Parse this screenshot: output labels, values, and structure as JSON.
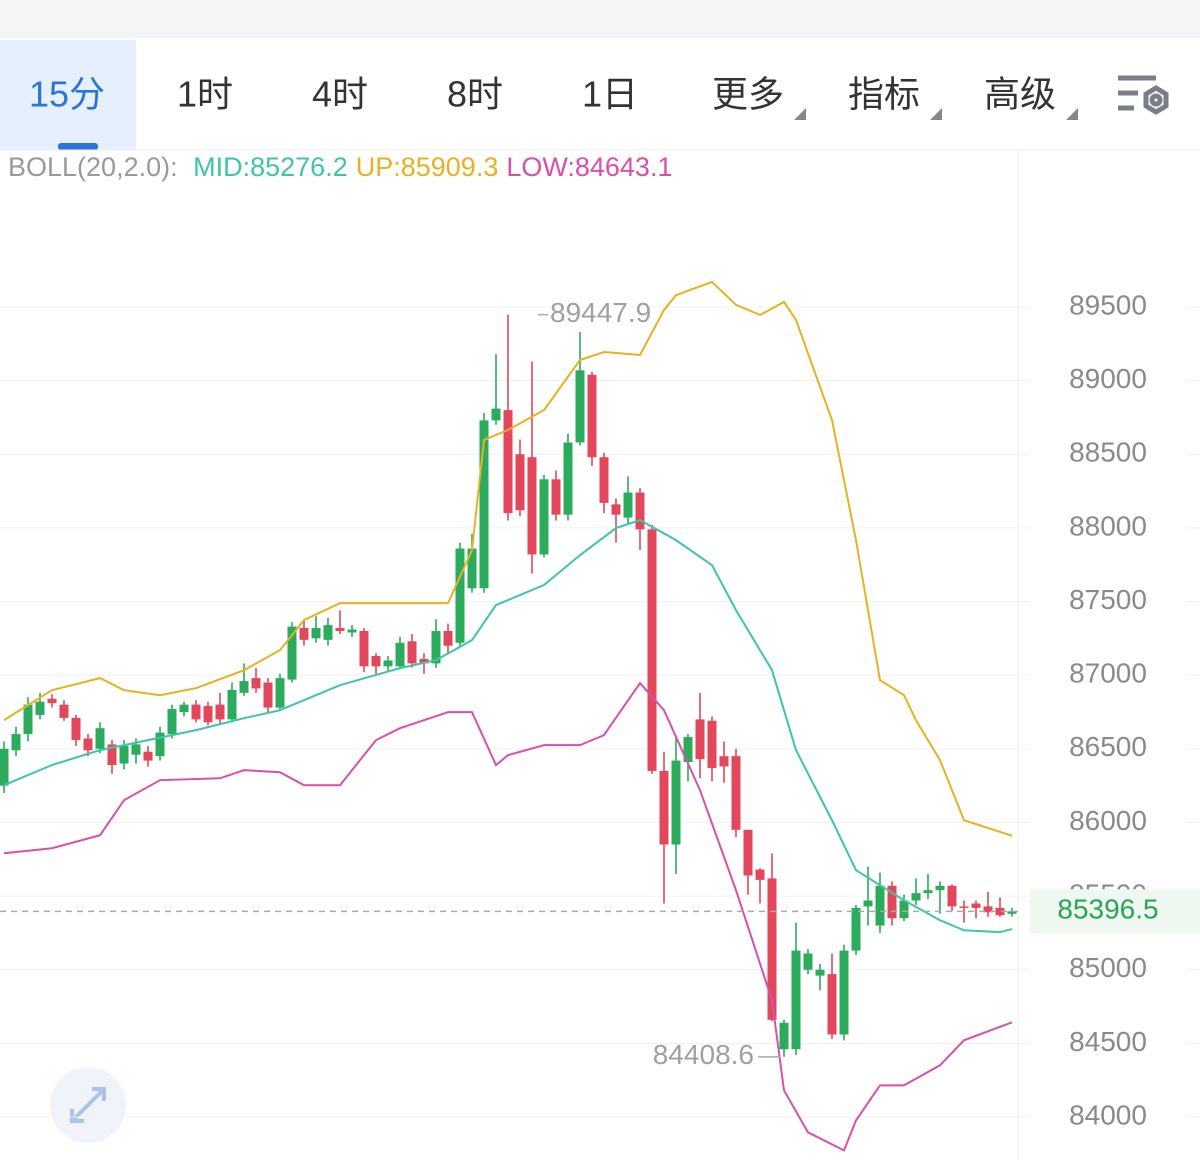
{
  "tabs": [
    {
      "label": "15分"
    },
    {
      "label": "1时"
    },
    {
      "label": "4时"
    },
    {
      "label": "8时"
    },
    {
      "label": "1日"
    },
    {
      "label": "更多",
      "menu": true
    },
    {
      "label": "指标",
      "menu": true
    },
    {
      "label": "高级",
      "menu": true
    }
  ],
  "active_tab": 0,
  "chart_data": {
    "type": "candlestick",
    "indicator": "BOLL(20,2.0):",
    "up_color": "#2bab5c",
    "down_color": "#e2475b",
    "open": [
      86250,
      86490,
      86600,
      86730,
      86840,
      86800,
      86710,
      86570,
      86500,
      86530,
      86400,
      86460,
      86480,
      86450,
      86600,
      86750,
      86800,
      86790,
      86800,
      86700,
      86880,
      86980,
      86950,
      86780,
      86970,
      87320,
      87250,
      87240,
      87320,
      87290,
      87300,
      87130,
      87060,
      87060,
      87230,
      87110,
      87080,
      87300,
      87220,
      87590,
      87590,
      88730,
      88800,
      88500,
      88480,
      87820,
      88330,
      88090,
      88580,
      89040,
      88480,
      88160,
      88070,
      88240,
      87990,
      86350,
      85850,
      86410,
      86700,
      86690,
      86450,
      86450,
      85950,
      85680,
      85620,
      84460,
      84460,
      85000,
      84960,
      84970,
      84560,
      85130,
      85430,
      85300,
      85570,
      85350,
      85470,
      85520,
      85540,
      85570,
      85430,
      85450,
      85430,
      85420,
      85380
    ],
    "high": [
      86550,
      86650,
      86850,
      86880,
      86870,
      86830,
      86730,
      86600,
      86680,
      86560,
      86560,
      86570,
      86520,
      86650,
      86800,
      86820,
      86830,
      86820,
      86880,
      86950,
      87080,
      87050,
      86980,
      87010,
      87360,
      87370,
      87400,
      87390,
      87440,
      87340,
      87320,
      87150,
      87130,
      87260,
      87280,
      87150,
      87380,
      87350,
      87900,
      87960,
      88780,
      89180,
      89447.9,
      88600,
      89130,
      88360,
      88390,
      88640,
      89330,
      89060,
      88510,
      88200,
      88350,
      88270,
      88020,
      86480,
      86590,
      86600,
      86880,
      86720,
      86550,
      86500,
      85950,
      85690,
      85790,
      84660,
      85320,
      85140,
      85040,
      85110,
      85170,
      85440,
      85700,
      85660,
      85600,
      85510,
      85620,
      85650,
      85600,
      85580,
      85470,
      85470,
      85530,
      85490,
      85420
    ],
    "low": [
      86200,
      86450,
      86550,
      86700,
      86780,
      86690,
      86520,
      86450,
      86470,
      86330,
      86360,
      86400,
      86380,
      86420,
      86570,
      86720,
      86680,
      86660,
      86670,
      86680,
      86860,
      86880,
      86750,
      86760,
      86950,
      87200,
      87220,
      87200,
      87280,
      87260,
      87020,
      87000,
      87030,
      87040,
      87050,
      87010,
      87050,
      87150,
      87190,
      87560,
      87560,
      88700,
      88050,
      88080,
      87690,
      87800,
      88050,
      88050,
      88560,
      88420,
      88100,
      87900,
      88030,
      87850,
      86330,
      85450,
      85650,
      86280,
      86300,
      86280,
      86270,
      85900,
      85510,
      85450,
      84650,
      84408.6,
      84420,
      84970,
      84860,
      84530,
      84520,
      85100,
      85300,
      85250,
      85300,
      85330,
      85440,
      85480,
      85380,
      85400,
      85320,
      85350,
      85360,
      85360,
      85360
    ],
    "close": [
      86500,
      86600,
      86800,
      86820,
      86810,
      86710,
      86560,
      86490,
      86640,
      86390,
      86520,
      86530,
      86420,
      86610,
      86770,
      86800,
      86700,
      86680,
      86700,
      86900,
      86960,
      86910,
      86780,
      86980,
      87330,
      87240,
      87320,
      87340,
      87300,
      87310,
      87060,
      87060,
      87100,
      87220,
      87080,
      87080,
      87300,
      87200,
      87860,
      87860,
      88730,
      88810,
      88100,
      88120,
      87820,
      88330,
      88090,
      88580,
      89070,
      88480,
      88170,
      88090,
      88240,
      87990,
      86350,
      85850,
      86420,
      86580,
      86430,
      86370,
      86380,
      85950,
      85640,
      85610,
      84660,
      84640,
      85130,
      85110,
      85000,
      84560,
      85130,
      85420,
      85470,
      85570,
      85350,
      85470,
      85520,
      85540,
      85570,
      85430,
      85420,
      85420,
      85390,
      85370,
      85396.5
    ],
    "bands": [
      {
        "name": "MID:",
        "color": "#3cc6a6",
        "x": [
          0,
          4,
          8,
          12,
          16,
          20,
          23,
          25,
          28,
          33,
          36,
          39,
          41,
          45,
          48,
          51,
          53,
          56,
          59,
          61,
          64,
          66,
          69,
          71,
          75,
          78,
          80,
          83,
          84
        ],
        "values": [
          86253,
          86390,
          86491,
          86559,
          86627,
          86708,
          86762,
          86830,
          86932,
          87048,
          87102,
          87238,
          87476,
          87612,
          87815,
          87999,
          88053,
          87917,
          87747,
          87442,
          87034,
          86491,
          86015,
          85676,
          85472,
          85336,
          85268,
          85255,
          85276.2
        ]
      },
      {
        "name": "UP:",
        "color": "#e9b122",
        "x": [
          0,
          4,
          8,
          10,
          13,
          16,
          20,
          23,
          25,
          28,
          33,
          37,
          39,
          40,
          42,
          45,
          48,
          50,
          53,
          55,
          56,
          59,
          61,
          63,
          65,
          66,
          69,
          71,
          73,
          75,
          76,
          78,
          80,
          84
        ],
        "values": [
          86695,
          86898,
          86980,
          86898,
          86864,
          86912,
          87034,
          87170,
          87374,
          87489,
          87489,
          87489,
          87849,
          88597,
          88665,
          88800,
          89140,
          89194,
          89174,
          89480,
          89580,
          89670,
          89514,
          89446,
          89534,
          89412,
          88732,
          87917,
          86966,
          86864,
          86694,
          86423,
          86015,
          85909.3
        ]
      },
      {
        "name": "LOW:",
        "color": "#d84fae",
        "x": [
          0,
          4,
          8,
          10,
          13,
          18,
          20,
          23,
          25,
          28,
          31,
          33,
          37,
          39,
          41,
          42,
          45,
          48,
          50,
          53,
          55,
          58,
          61,
          64,
          65,
          67,
          70,
          71,
          73,
          75,
          78,
          80,
          84
        ],
        "values": [
          85791,
          85825,
          85913,
          86151,
          86287,
          86300,
          86355,
          86341,
          86253,
          86253,
          86559,
          86640,
          86749,
          86749,
          86389,
          86457,
          86525,
          86525,
          86593,
          86946,
          86762,
          86219,
          85540,
          84793,
          84181,
          83896,
          83773,
          83977,
          84215,
          84215,
          84351,
          84521,
          84643.1
        ]
      }
    ],
    "ylim": [
      83708,
      90566
    ],
    "yticks": [
      84000,
      84500,
      85000,
      85500,
      86000,
      86500,
      87000,
      87500,
      88000,
      88500,
      89000,
      89500
    ],
    "grid": true
  }
}
